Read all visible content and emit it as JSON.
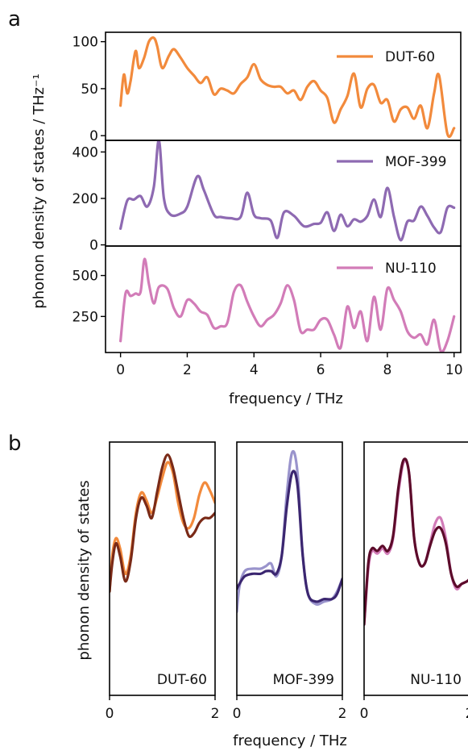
{
  "panel_a": {
    "letter": "a",
    "ylabel": "phonon density of states / THz⁻¹",
    "xlabel": "frequency / THz",
    "xticks": [
      "0",
      "2",
      "4",
      "6",
      "8",
      "10"
    ]
  },
  "panel_b": {
    "letter": "b",
    "ylabel": "phonon density of states",
    "xlabel": "frequency / THz",
    "xticks": [
      "0",
      "2"
    ]
  },
  "chart_data": [
    {
      "type": "line",
      "panel": "a-top",
      "xlim": [
        -0.45,
        10.2
      ],
      "ylim": [
        -5,
        110
      ],
      "yticks": [
        0,
        50,
        100
      ],
      "legend_placement": "top-right",
      "series": [
        {
          "name": "DUT-60",
          "color": "#f28a3c",
          "x": [
            0,
            0.1,
            0.2,
            0.3,
            0.45,
            0.55,
            0.7,
            0.85,
            1.0,
            1.1,
            1.25,
            1.45,
            1.6,
            1.8,
            2.0,
            2.2,
            2.4,
            2.6,
            2.8,
            3.0,
            3.2,
            3.4,
            3.6,
            3.8,
            4.0,
            4.2,
            4.4,
            4.6,
            4.8,
            5.0,
            5.2,
            5.4,
            5.6,
            5.8,
            6.0,
            6.2,
            6.4,
            6.6,
            6.8,
            7.0,
            7.2,
            7.4,
            7.6,
            7.8,
            8.0,
            8.2,
            8.4,
            8.6,
            8.8,
            9.0,
            9.2,
            9.4,
            9.55,
            9.8,
            10.0
          ],
          "y": [
            32,
            65,
            45,
            58,
            90,
            72,
            82,
            100,
            104,
            95,
            72,
            85,
            92,
            83,
            72,
            64,
            56,
            62,
            44,
            50,
            48,
            45,
            55,
            62,
            76,
            60,
            54,
            52,
            52,
            45,
            48,
            38,
            52,
            58,
            48,
            40,
            14,
            28,
            42,
            66,
            30,
            50,
            54,
            35,
            38,
            15,
            28,
            30,
            18,
            32,
            8,
            45,
            64,
            2,
            8
          ]
        }
      ]
    },
    {
      "type": "line",
      "panel": "a-mid",
      "xlim": [
        -0.45,
        10.2
      ],
      "ylim": [
        -5,
        450
      ],
      "yticks": [
        0,
        200,
        400
      ],
      "legend_placement": "top-right",
      "series": [
        {
          "name": "MOF-399",
          "color": "#8e6ab2",
          "x": [
            0,
            0.2,
            0.4,
            0.6,
            0.8,
            1.0,
            1.15,
            1.3,
            1.5,
            1.8,
            2.0,
            2.3,
            2.5,
            2.8,
            3.0,
            3.3,
            3.6,
            3.8,
            4.0,
            4.2,
            4.5,
            4.7,
            4.9,
            5.2,
            5.5,
            5.8,
            6.0,
            6.2,
            6.4,
            6.6,
            6.8,
            7.0,
            7.2,
            7.4,
            7.6,
            7.8,
            8.0,
            8.2,
            8.4,
            8.6,
            8.8,
            9.0,
            9.2,
            9.4,
            9.6,
            9.8,
            10.0
          ],
          "y": [
            70,
            190,
            195,
            210,
            165,
            250,
            450,
            200,
            130,
            135,
            165,
            295,
            235,
            130,
            120,
            115,
            120,
            225,
            130,
            115,
            105,
            30,
            140,
            125,
            80,
            90,
            95,
            140,
            60,
            130,
            80,
            110,
            100,
            125,
            195,
            120,
            245,
            120,
            20,
            100,
            105,
            165,
            125,
            75,
            55,
            160,
            160
          ]
        }
      ]
    },
    {
      "type": "line",
      "panel": "a-bot",
      "xlim": [
        -0.45,
        10.2
      ],
      "ylim": [
        30,
        680
      ],
      "yticks": [
        250,
        500
      ],
      "legend_placement": "top-right",
      "series": [
        {
          "name": "NU-110",
          "color": "#d27cb8",
          "x": [
            0,
            0.15,
            0.3,
            0.45,
            0.6,
            0.72,
            0.85,
            1.0,
            1.15,
            1.4,
            1.6,
            1.8,
            2.0,
            2.2,
            2.4,
            2.6,
            2.8,
            3.0,
            3.2,
            3.4,
            3.6,
            3.8,
            4.0,
            4.2,
            4.4,
            4.6,
            4.8,
            5.0,
            5.2,
            5.4,
            5.6,
            5.8,
            6.0,
            6.2,
            6.4,
            6.6,
            6.8,
            7.0,
            7.2,
            7.4,
            7.6,
            7.8,
            8.0,
            8.2,
            8.4,
            8.6,
            8.8,
            9.0,
            9.2,
            9.4,
            9.6,
            9.8,
            10.0
          ],
          "y": [
            100,
            390,
            375,
            390,
            400,
            600,
            450,
            330,
            430,
            420,
            300,
            250,
            350,
            330,
            280,
            260,
            180,
            190,
            210,
            400,
            440,
            340,
            250,
            190,
            230,
            260,
            330,
            440,
            350,
            160,
            170,
            170,
            230,
            230,
            140,
            60,
            310,
            180,
            280,
            100,
            370,
            170,
            420,
            350,
            280,
            160,
            120,
            140,
            80,
            230,
            40,
            100,
            250
          ]
        }
      ]
    },
    {
      "type": "line",
      "panel": "b-1",
      "xlim": [
        0,
        2
      ],
      "ylim": [
        0,
        1
      ],
      "label": "DUT-60",
      "series": [
        {
          "color": "#f28a3c",
          "x": [
            0,
            0.05,
            0.12,
            0.2,
            0.3,
            0.4,
            0.5,
            0.6,
            0.7,
            0.8,
            0.9,
            1.0,
            1.1,
            1.2,
            1.3,
            1.4,
            1.5,
            1.6,
            1.7,
            1.8,
            1.9,
            2.0
          ],
          "y": [
            0.41,
            0.55,
            0.62,
            0.58,
            0.48,
            0.55,
            0.72,
            0.8,
            0.77,
            0.72,
            0.78,
            0.86,
            0.92,
            0.88,
            0.76,
            0.68,
            0.66,
            0.7,
            0.79,
            0.84,
            0.81,
            0.76
          ]
        },
        {
          "color": "#7a2a17",
          "x": [
            0,
            0.05,
            0.12,
            0.2,
            0.3,
            0.4,
            0.5,
            0.6,
            0.7,
            0.8,
            0.9,
            1.0,
            1.1,
            1.2,
            1.3,
            1.4,
            1.5,
            1.6,
            1.7,
            1.8,
            1.9,
            2.0
          ],
          "y": [
            0.41,
            0.52,
            0.6,
            0.55,
            0.45,
            0.53,
            0.7,
            0.78,
            0.75,
            0.7,
            0.8,
            0.9,
            0.95,
            0.9,
            0.8,
            0.7,
            0.63,
            0.64,
            0.68,
            0.7,
            0.7,
            0.72
          ]
        }
      ]
    },
    {
      "type": "line",
      "panel": "b-2",
      "xlim": [
        0,
        2
      ],
      "ylim": [
        0,
        1
      ],
      "label": "MOF-399",
      "series": [
        {
          "color": "#9a94cc",
          "x": [
            0,
            0.05,
            0.15,
            0.3,
            0.45,
            0.55,
            0.65,
            0.75,
            0.85,
            0.95,
            1.05,
            1.15,
            1.25,
            1.35,
            1.5,
            1.65,
            1.8,
            1.9,
            2.0
          ],
          "y": [
            0.33,
            0.43,
            0.49,
            0.5,
            0.5,
            0.51,
            0.52,
            0.47,
            0.55,
            0.8,
            0.96,
            0.88,
            0.55,
            0.4,
            0.36,
            0.37,
            0.38,
            0.41,
            0.46
          ]
        },
        {
          "color": "#3b2670",
          "x": [
            0,
            0.05,
            0.15,
            0.3,
            0.45,
            0.55,
            0.65,
            0.75,
            0.85,
            0.95,
            1.05,
            1.15,
            1.25,
            1.35,
            1.5,
            1.65,
            1.8,
            1.9,
            2.0
          ],
          "y": [
            0.42,
            0.44,
            0.47,
            0.48,
            0.48,
            0.49,
            0.49,
            0.48,
            0.55,
            0.75,
            0.88,
            0.83,
            0.55,
            0.4,
            0.37,
            0.38,
            0.38,
            0.4,
            0.46
          ]
        }
      ]
    },
    {
      "type": "line",
      "panel": "b-3",
      "xlim": [
        0,
        2
      ],
      "ylim": [
        0,
        1
      ],
      "label": "NU-110",
      "series": [
        {
          "color": "#d27cb8",
          "x": [
            0,
            0.08,
            0.15,
            0.25,
            0.35,
            0.45,
            0.55,
            0.65,
            0.75,
            0.85,
            0.95,
            1.05,
            1.15,
            1.25,
            1.35,
            1.45,
            1.55,
            1.65,
            1.75,
            1.85,
            1.95,
            2.0
          ],
          "y": [
            0.28,
            0.5,
            0.57,
            0.56,
            0.58,
            0.56,
            0.62,
            0.8,
            0.92,
            0.88,
            0.62,
            0.52,
            0.52,
            0.6,
            0.68,
            0.7,
            0.62,
            0.48,
            0.42,
            0.44,
            0.45,
            0.46
          ]
        },
        {
          "color": "#5c0b2a",
          "x": [
            0,
            0.08,
            0.15,
            0.25,
            0.35,
            0.45,
            0.55,
            0.65,
            0.75,
            0.85,
            0.95,
            1.05,
            1.15,
            1.25,
            1.35,
            1.45,
            1.55,
            1.65,
            1.75,
            1.85,
            1.95,
            2.0
          ],
          "y": [
            0.28,
            0.52,
            0.58,
            0.57,
            0.59,
            0.57,
            0.63,
            0.82,
            0.93,
            0.88,
            0.62,
            0.52,
            0.52,
            0.59,
            0.65,
            0.66,
            0.6,
            0.48,
            0.43,
            0.44,
            0.45,
            0.46
          ]
        }
      ]
    }
  ]
}
